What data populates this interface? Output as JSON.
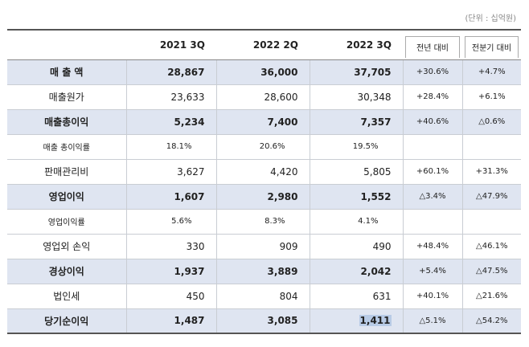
{
  "unit_note": "(단위 : 십억원)",
  "headers": [
    "",
    "2021 3Q",
    "2022 2Q",
    "2022 3Q",
    "전년 대비",
    "전분기 대비"
  ],
  "rows": [
    {
      "label": "매 출 액",
      "v1": "28,867",
      "v2": "36,000",
      "v3": "37,705",
      "yoy": "+30.6%",
      "qoq": "+4.7%"
    },
    {
      "label": "매출원가",
      "v1": "23,633",
      "v2": "28,600",
      "v3": "30,348",
      "yoy": "+28.4%",
      "qoq": "+6.1%"
    },
    {
      "label": "매출총이익",
      "v1": "5,234",
      "v2": "7,400",
      "v3": "7,357",
      "yoy": "+40.6%",
      "qoq": "△0.6%"
    },
    {
      "label": "매출 총이익률",
      "v1": "18.1%",
      "v2": "20.6%",
      "v3": "19.5%",
      "yoy": "",
      "qoq": ""
    },
    {
      "label": "판매관리비",
      "v1": "3,627",
      "v2": "4,420",
      "v3": "5,805",
      "yoy": "+60.1%",
      "qoq": "+31.3%"
    },
    {
      "label": "영업이익",
      "v1": "1,607",
      "v2": "2,980",
      "v3": "1,552",
      "yoy": "△3.4%",
      "qoq": "△47.9%"
    },
    {
      "label": "영업이익률",
      "v1": "5.6%",
      "v2": "8.3%",
      "v3": "4.1%",
      "yoy": "",
      "qoq": ""
    },
    {
      "label": "영업외 손익",
      "v1": "330",
      "v2": "909",
      "v3": "490",
      "yoy": "+48.4%",
      "qoq": "△46.1%"
    },
    {
      "label": "경상이익",
      "v1": "1,937",
      "v2": "3,889",
      "v3": "2,042",
      "yoy": "+5.4%",
      "qoq": "△47.5%"
    },
    {
      "label": "법인세",
      "v1": "450",
      "v2": "804",
      "v3": "631",
      "yoy": "+40.1%",
      "qoq": "△21.6%"
    },
    {
      "label": "당기순이익",
      "v1": "1,487",
      "v2": "3,085",
      "v3": "1,411",
      "yoy": "△5.1%",
      "qoq": "△54.2%"
    }
  ]
}
